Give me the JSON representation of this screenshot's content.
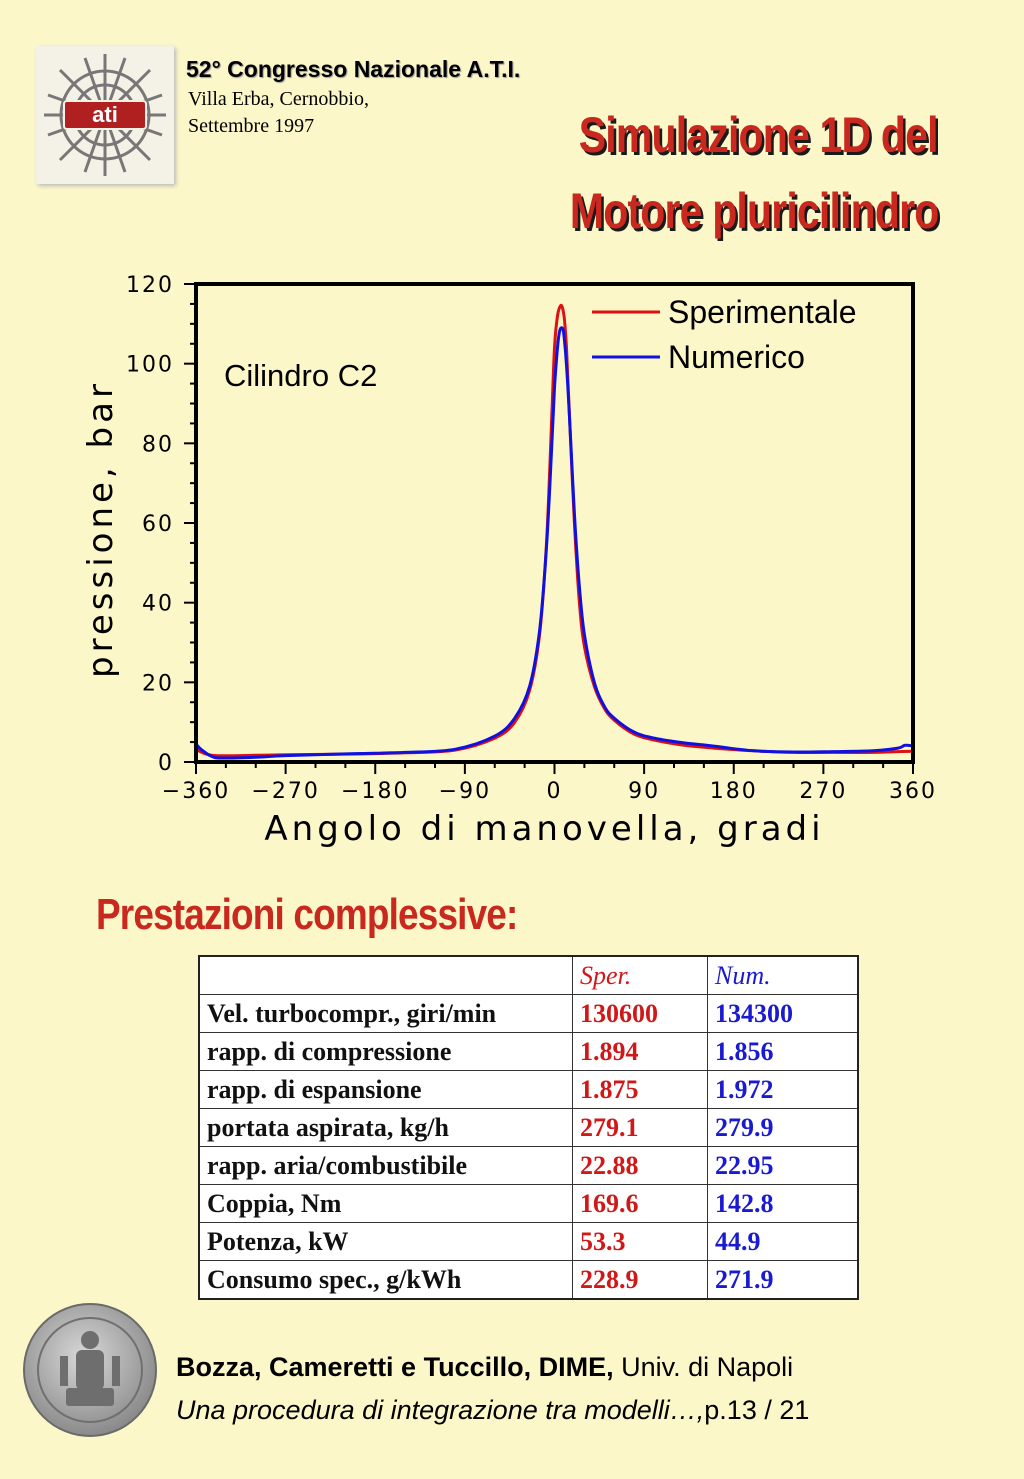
{
  "header": {
    "conference_title": "52° Congresso Nazionale A.T.I.",
    "location": "Villa Erba, Cernobbio,",
    "date": "Settembre 1997",
    "logo_text": "ati"
  },
  "title": {
    "line1": "Simulazione 1D del",
    "line2": "Motore pluricilindro"
  },
  "chart_data": {
    "type": "line",
    "xlabel": "Angolo di manovella, gradi",
    "ylabel": "pressione, bar",
    "annotation": "Cilindro C2",
    "xlim": [
      -360,
      360
    ],
    "ylim": [
      0,
      120
    ],
    "xticks": [
      -360,
      -270,
      -180,
      -90,
      0,
      90,
      180,
      270,
      360
    ],
    "yticks": [
      0,
      20,
      40,
      60,
      80,
      100,
      120
    ],
    "xtick_labels": [
      "−360",
      "−270",
      "−180",
      "−90",
      "0",
      "90",
      "180",
      "270",
      "360"
    ],
    "ytick_labels": [
      "0",
      "20",
      "40",
      "60",
      "80",
      "100",
      "120"
    ],
    "legend_position": "top-right",
    "grid": false,
    "series": [
      {
        "name": "Sperimentale",
        "color": "#e01010",
        "x": [
          -360,
          -355,
          -340,
          -300,
          -270,
          -200,
          -150,
          -100,
          -60,
          -40,
          -25,
          -15,
          -8,
          -3,
          0,
          3,
          6,
          8,
          10,
          12,
          14,
          17,
          20,
          25,
          30,
          40,
          50,
          60,
          80,
          100,
          130,
          160,
          200,
          240,
          280,
          320,
          345,
          360
        ],
        "y": [
          3.5,
          2.5,
          1.6,
          1.7,
          1.8,
          2.0,
          2.3,
          3.0,
          6,
          10,
          18,
          32,
          55,
          85,
          104,
          112,
          114.5,
          114,
          111,
          104,
          93,
          76,
          60,
          40,
          29,
          19,
          13.5,
          10.5,
          7,
          5.5,
          4.2,
          3.5,
          2.8,
          2.4,
          2.4,
          2.4,
          2.6,
          2.7
        ]
      },
      {
        "name": "Numerico",
        "color": "#1010e0",
        "x": [
          -360,
          -355,
          -345,
          -335,
          -300,
          -270,
          -200,
          -150,
          -100,
          -60,
          -40,
          -25,
          -15,
          -8,
          -3,
          0,
          3,
          5,
          7,
          9,
          11,
          13,
          15,
          18,
          21,
          25,
          30,
          40,
          50,
          60,
          80,
          100,
          130,
          160,
          200,
          240,
          280,
          320,
          345,
          352,
          360
        ],
        "y": [
          4.5,
          3.2,
          1.5,
          1.0,
          1.2,
          1.6,
          2.1,
          2.4,
          3.2,
          6.5,
          11,
          19,
          33,
          54,
          78,
          94,
          104,
          108,
          109,
          108,
          103,
          96,
          87,
          72,
          58,
          44,
          32,
          20,
          14,
          11,
          7.5,
          6,
          4.8,
          4,
          2.8,
          2.5,
          2.6,
          2.8,
          3.5,
          4.2,
          4.0
        ]
      }
    ]
  },
  "performance": {
    "heading": "Prestazioni complessive:",
    "columns": [
      "",
      "Sper.",
      "Num."
    ],
    "rows": [
      {
        "label": "Vel. turbocompr., giri/min",
        "sper": "130600",
        "num": "134300"
      },
      {
        "label": "rapp. di compressione",
        "sper": "1.894",
        "num": "1.856"
      },
      {
        "label": "rapp. di espansione",
        "sper": "1.875",
        "num": "1.972"
      },
      {
        "label": "portata aspirata, kg/h",
        "sper": "279.1",
        "num": "279.9"
      },
      {
        "label": "rapp. aria/combustibile",
        "sper": "22.88",
        "num": "22.95"
      },
      {
        "label": "Coppia, Nm",
        "sper": "169.6",
        "num": "142.8"
      },
      {
        "label": "Potenza, kW",
        "sper": "53.3",
        "num": "44.9"
      },
      {
        "label": "Consumo spec., g/kWh",
        "sper": "228.9",
        "num": "271.9"
      }
    ]
  },
  "footer": {
    "authors_bold": "Bozza, Cameretti e Tuccillo, DIME,",
    "affiliation": " Univ. di Napoli",
    "paper_title": "Una procedura di integrazione tra modelli…,",
    "page": "p.13 / 21"
  }
}
